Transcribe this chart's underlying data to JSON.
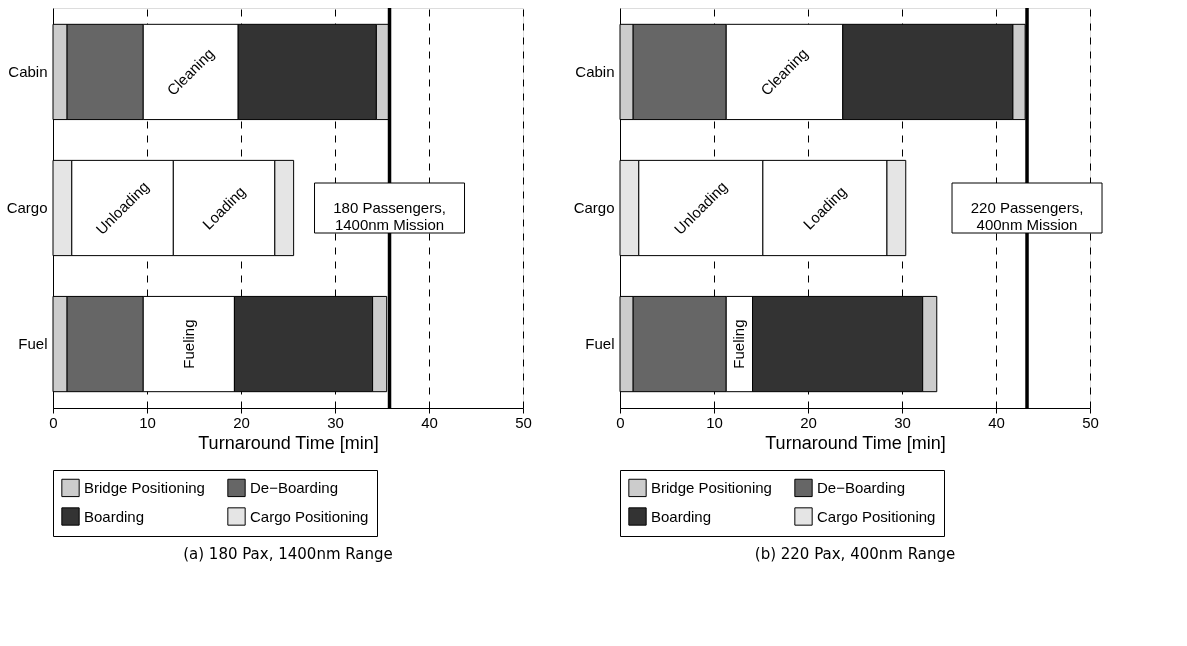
{
  "chart_data": [
    {
      "type": "bar",
      "orientation": "horizontal",
      "stacked": true,
      "title": "(a) 180 Pax, 1400nm Range",
      "xlabel": "Turnaround Time [min]",
      "categories": [
        "Cabin",
        "Cargo",
        "Fuel"
      ],
      "series": [
        {
          "name": "Bridge Positioning",
          "color": "#cccccc",
          "values": [
            1.5,
            null,
            1.5
          ]
        },
        {
          "name": "De−Boarding",
          "color": "#666666",
          "values": [
            8.1,
            null,
            8.1
          ]
        },
        {
          "color": "#ffffff",
          "values": [
            10.1,
            null,
            9.7
          ],
          "value_labels": [
            "Cleaning",
            null,
            "Fueling"
          ]
        },
        {
          "name": "Boarding",
          "color": "#333333",
          "values": [
            14.7,
            null,
            14.7
          ]
        },
        {
          "color": "#cccccc",
          "values": [
            1.3,
            null,
            1.5
          ]
        },
        {
          "name": "Cargo Positioning",
          "color": "#e5e5e5",
          "values": [
            null,
            2.0,
            null
          ]
        },
        {
          "color": "#ffffff",
          "values": [
            null,
            10.8,
            null
          ],
          "value_labels": [
            null,
            "Unloading",
            null
          ]
        },
        {
          "color": "#ffffff",
          "values": [
            null,
            10.8,
            null
          ],
          "value_labels": [
            null,
            "Loading",
            null
          ]
        },
        {
          "color": "#e5e5e5",
          "values": [
            null,
            2.0,
            null
          ]
        }
      ],
      "ref_lines": [
        {
          "axis": "x",
          "value": 35.8,
          "label": "180 Passengers,\n1400nm Mission",
          "color": "#000000"
        }
      ],
      "xlim": [
        0,
        50
      ],
      "xticks": [
        0,
        10,
        20,
        30,
        40,
        50
      ],
      "grid": "x",
      "legend": "bottom"
    },
    {
      "type": "bar",
      "orientation": "horizontal",
      "stacked": true,
      "title": "(b) 220 Pax, 400nm Range",
      "xlabel": "Turnaround Time [min]",
      "categories": [
        "Cabin",
        "Cargo",
        "Fuel"
      ],
      "series": [
        {
          "name": "Bridge Positioning",
          "color": "#cccccc",
          "values": [
            1.4,
            null,
            1.4
          ]
        },
        {
          "name": "De−Boarding",
          "color": "#666666",
          "values": [
            9.9,
            null,
            9.9
          ]
        },
        {
          "color": "#ffffff",
          "values": [
            12.4,
            null,
            2.8
          ],
          "value_labels": [
            "Cleaning",
            null,
            "Fueling"
          ]
        },
        {
          "name": "Boarding",
          "color": "#333333",
          "values": [
            18.1,
            null,
            18.1
          ]
        },
        {
          "color": "#cccccc",
          "values": [
            1.3,
            null,
            1.5
          ]
        },
        {
          "name": "Cargo Positioning",
          "color": "#e5e5e5",
          "values": [
            null,
            2.0,
            null
          ]
        },
        {
          "color": "#ffffff",
          "values": [
            null,
            13.2,
            null
          ],
          "value_labels": [
            null,
            "Unloading",
            null
          ]
        },
        {
          "color": "#ffffff",
          "values": [
            null,
            13.2,
            null
          ],
          "value_labels": [
            null,
            "Loading",
            null
          ]
        },
        {
          "color": "#e5e5e5",
          "values": [
            null,
            2.0,
            null
          ]
        }
      ],
      "ref_lines": [
        {
          "axis": "x",
          "value": 43.3,
          "label": "220 Passengers,\n400nm Mission",
          "color": "#000000"
        }
      ],
      "xlim": [
        0,
        50
      ],
      "xticks": [
        0,
        10,
        20,
        30,
        40,
        50
      ],
      "grid": "x",
      "legend": "bottom"
    }
  ]
}
